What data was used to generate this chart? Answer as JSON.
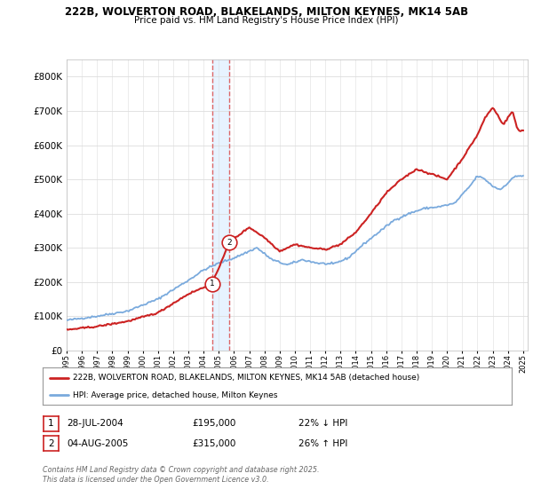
{
  "title1": "222B, WOLVERTON ROAD, BLAKELANDS, MILTON KEYNES, MK14 5AB",
  "title2": "Price paid vs. HM Land Registry's House Price Index (HPI)",
  "legend_label1": "222B, WOLVERTON ROAD, BLAKELANDS, MILTON KEYNES, MK14 5AB (detached house)",
  "legend_label2": "HPI: Average price, detached house, Milton Keynes",
  "transaction1_date": "28-JUL-2004",
  "transaction1_price": "£195,000",
  "transaction1_hpi": "22% ↓ HPI",
  "transaction2_date": "04-AUG-2005",
  "transaction2_price": "£315,000",
  "transaction2_hpi": "26% ↑ HPI",
  "footer": "Contains HM Land Registry data © Crown copyright and database right 2025.\nThis data is licensed under the Open Government Licence v3.0.",
  "hpi_color": "#7aaadd",
  "price_color": "#cc2222",
  "vline_color": "#dd6666",
  "vfill_color": "#ddeeff",
  "background_color": "#ffffff",
  "grid_color": "#dddddd",
  "ylim": [
    0,
    850000
  ],
  "yticks": [
    0,
    100000,
    200000,
    300000,
    400000,
    500000,
    600000,
    700000,
    800000
  ],
  "t1_year": 2004.583,
  "t2_year": 2005.667,
  "t1_price": 195000,
  "t2_price": 315000
}
